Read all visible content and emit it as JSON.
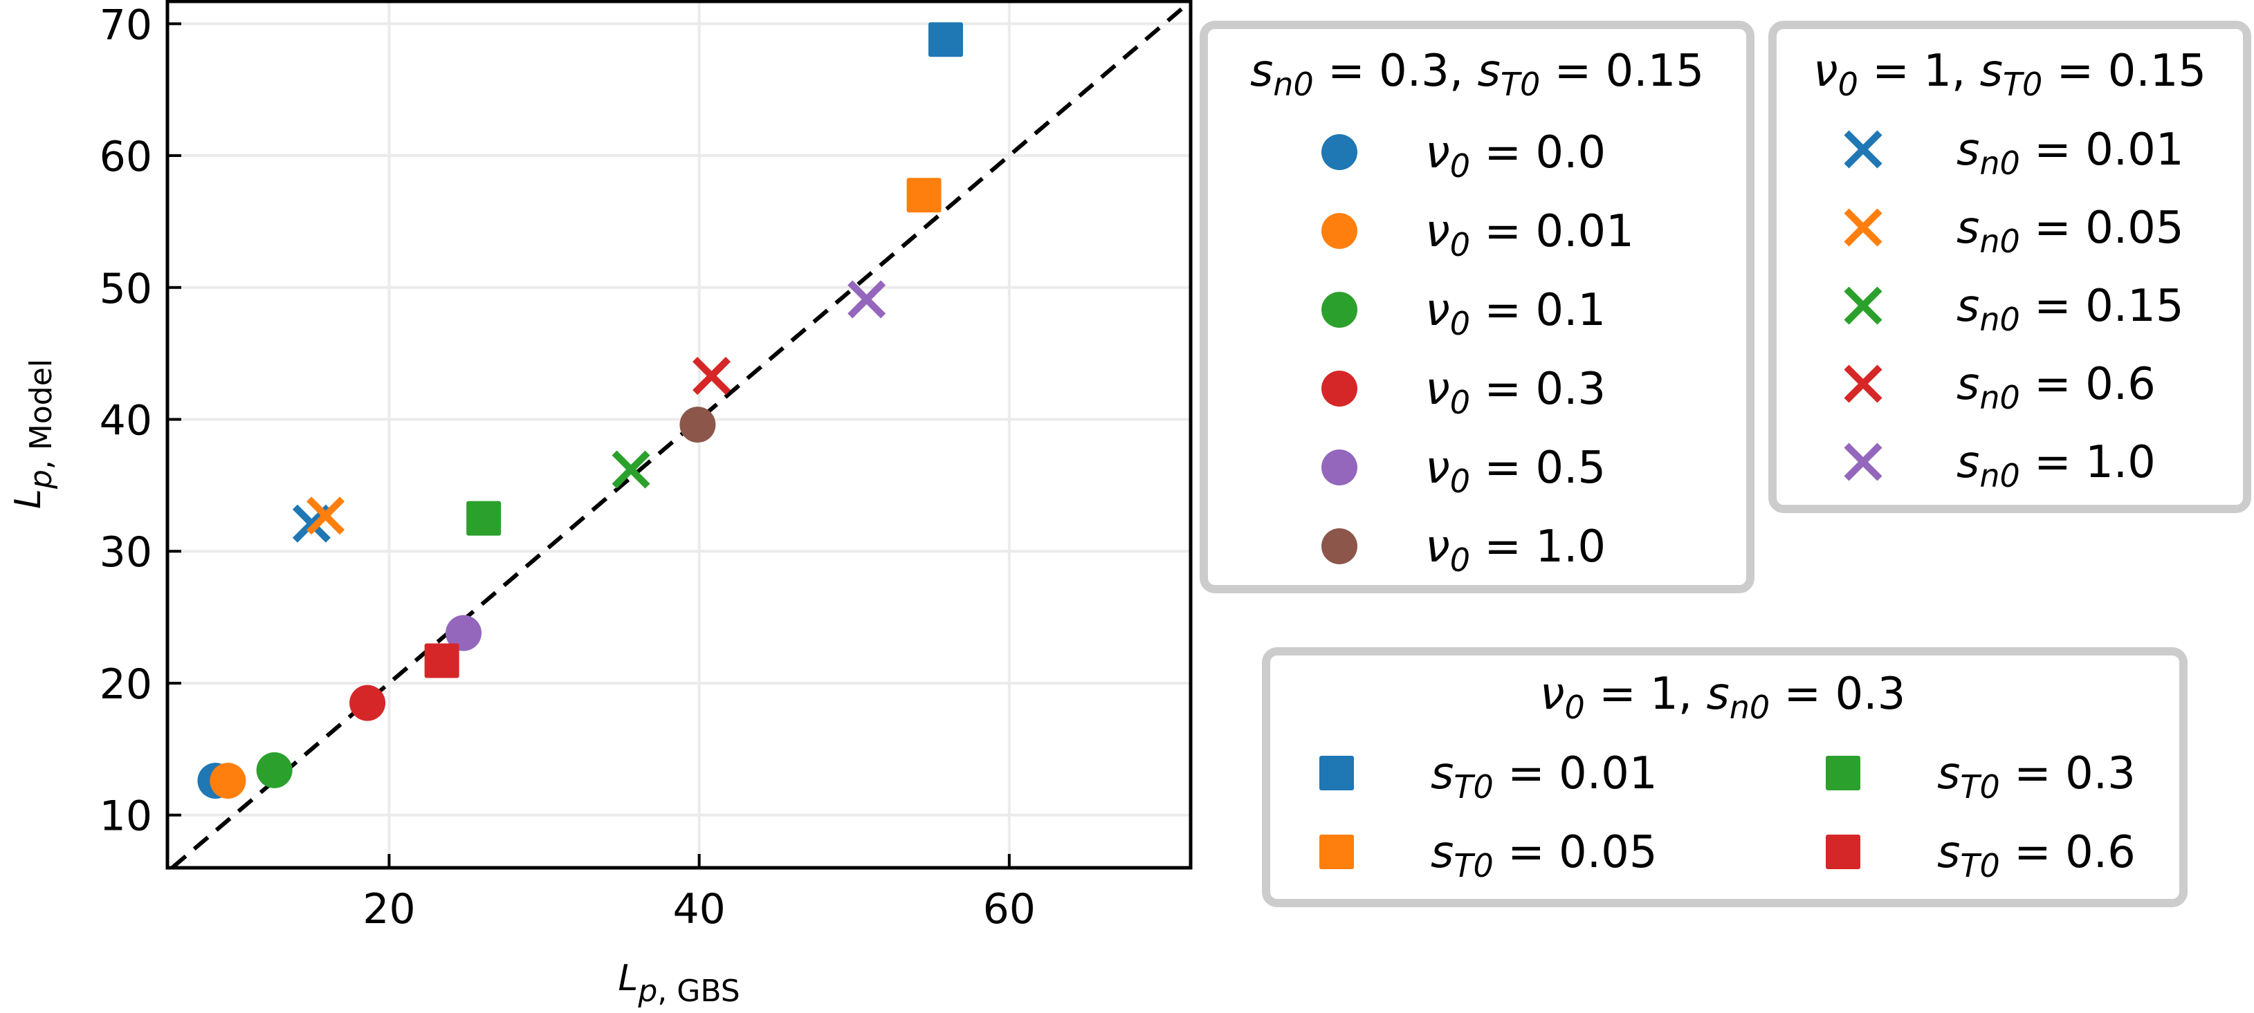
{
  "chart_data": {
    "type": "scatter",
    "title": "",
    "xlabel": "L_{p, GBS}",
    "ylabel": "L_{p, Model}",
    "xlabel_parts": {
      "main": "L",
      "sub": "p, GBS"
    },
    "ylabel_parts": {
      "main": "L",
      "sub": "p, Model"
    },
    "xlim": [
      5.7,
      71.7
    ],
    "ylim": [
      6.0,
      71.8
    ],
    "xticks": [
      20,
      40,
      60
    ],
    "yticks": [
      10,
      20,
      30,
      40,
      50,
      60,
      70
    ],
    "grid": true,
    "reference_line": {
      "type": "y=x",
      "style": "dashed",
      "color": "#000000"
    },
    "colors": {
      "blue": "#1f77b4",
      "orange": "#ff7f0e",
      "green": "#2ca02c",
      "red": "#d62728",
      "purple": "#9467bd",
      "brown": "#8c564b"
    },
    "series": [
      {
        "group": "circles",
        "marker": "circle",
        "legend_title": "s_{n0} = 0.3, s_{T0} = 0.15",
        "points": [
          {
            "name": "ν0 = 0.0",
            "color": "#1f77b4",
            "x": 8.8,
            "y": 12.6
          },
          {
            "name": "ν0 = 0.01",
            "color": "#ff7f0e",
            "x": 9.6,
            "y": 12.6
          },
          {
            "name": "ν0 = 0.1",
            "color": "#2ca02c",
            "x": 12.6,
            "y": 13.4
          },
          {
            "name": "ν0 = 0.3",
            "color": "#d62728",
            "x": 18.6,
            "y": 18.5
          },
          {
            "name": "ν0 = 0.5",
            "color": "#9467bd",
            "x": 24.8,
            "y": 23.8
          },
          {
            "name": "ν0 = 1.0",
            "color": "#8c564b",
            "x": 39.9,
            "y": 39.6
          }
        ]
      },
      {
        "group": "crosses",
        "marker": "x",
        "legend_title": "ν0 = 1, s_{T0} = 0.15",
        "points": [
          {
            "name": "s_n0 = 0.01",
            "color": "#1f77b4",
            "x": 15.0,
            "y": 32.1
          },
          {
            "name": "s_n0 = 0.05",
            "color": "#ff7f0e",
            "x": 15.9,
            "y": 32.7
          },
          {
            "name": "s_n0 = 0.15",
            "color": "#2ca02c",
            "x": 35.6,
            "y": 36.2
          },
          {
            "name": "s_n0 = 0.6",
            "color": "#d62728",
            "x": 40.8,
            "y": 43.3
          },
          {
            "name": "s_n0 = 1.0",
            "color": "#9467bd",
            "x": 50.8,
            "y": 49.1
          }
        ]
      },
      {
        "group": "squares",
        "marker": "square",
        "legend_title": "ν0 = 1, s_{n0} = 0.3",
        "points": [
          {
            "name": "s_T0 = 0.01",
            "color": "#1f77b4",
            "x": 55.9,
            "y": 68.8
          },
          {
            "name": "s_T0 = 0.05",
            "color": "#ff7f0e",
            "x": 54.5,
            "y": 57.0
          },
          {
            "name": "s_T0 = 0.3",
            "color": "#2ca02c",
            "x": 26.1,
            "y": 32.5
          },
          {
            "name": "s_T0 = 0.6",
            "color": "#d62728",
            "x": 23.4,
            "y": 21.7
          }
        ]
      }
    ]
  },
  "legends": {
    "circles": {
      "title": {
        "a_var": "s",
        "a_sub": "n0",
        "a_val": " = 0.3, ",
        "b_var": "s",
        "b_sub": "T0",
        "b_val": " = 0.15"
      },
      "items": [
        {
          "var": "ν",
          "sub": "0",
          "val": " = 0.0"
        },
        {
          "var": "ν",
          "sub": "0",
          "val": " = 0.01"
        },
        {
          "var": "ν",
          "sub": "0",
          "val": " = 0.1"
        },
        {
          "var": "ν",
          "sub": "0",
          "val": " = 0.3"
        },
        {
          "var": "ν",
          "sub": "0",
          "val": " = 0.5"
        },
        {
          "var": "ν",
          "sub": "0",
          "val": " = 1.0"
        }
      ]
    },
    "crosses": {
      "title": {
        "a_var": "ν",
        "a_sub": "0",
        "a_val": " = 1, ",
        "b_var": "s",
        "b_sub": "T0",
        "b_val": " = 0.15"
      },
      "items": [
        {
          "var": "s",
          "sub": "n0",
          "val": " = 0.01"
        },
        {
          "var": "s",
          "sub": "n0",
          "val": " = 0.05"
        },
        {
          "var": "s",
          "sub": "n0",
          "val": " = 0.15"
        },
        {
          "var": "s",
          "sub": "n0",
          "val": " = 0.6"
        },
        {
          "var": "s",
          "sub": "n0",
          "val": " = 1.0"
        }
      ]
    },
    "squares": {
      "title": {
        "a_var": "ν",
        "a_sub": "0",
        "a_val": " = 1, ",
        "b_var": "s",
        "b_sub": "n0",
        "b_val": " = 0.3"
      },
      "items": [
        {
          "var": "s",
          "sub": "T0",
          "val": " = 0.01"
        },
        {
          "var": "s",
          "sub": "T0",
          "val": " = 0.05"
        },
        {
          "var": "s",
          "sub": "T0",
          "val": " = 0.3"
        },
        {
          "var": "s",
          "sub": "T0",
          "val": " = 0.6"
        }
      ]
    }
  }
}
